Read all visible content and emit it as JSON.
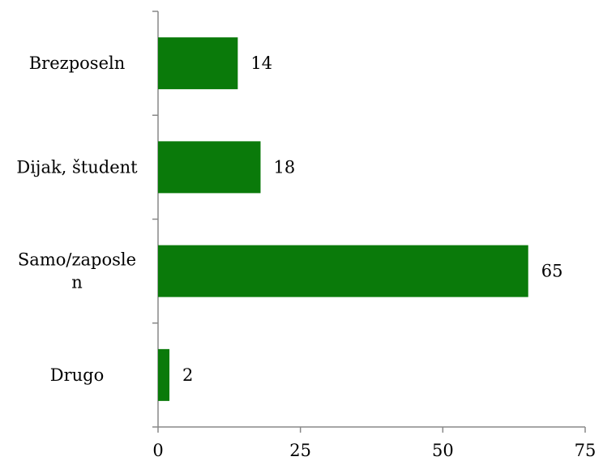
{
  "chart_data": {
    "type": "bar",
    "orientation": "horizontal",
    "title": "",
    "xlabel": "",
    "ylabel": "",
    "categories": [
      [
        "Brezposeln"
      ],
      [
        "Dijak, študent"
      ],
      [
        "Samo/zaposle",
        "n"
      ],
      [
        "Drugo"
      ]
    ],
    "values": [
      14,
      18,
      65,
      2
    ],
    "xlim": [
      0,
      75
    ],
    "xticks": [
      "0",
      "25",
      "50",
      "75"
    ],
    "grid": false,
    "legend": "none",
    "bar_color": "#0a7a0a",
    "axis_color": "#888888"
  }
}
